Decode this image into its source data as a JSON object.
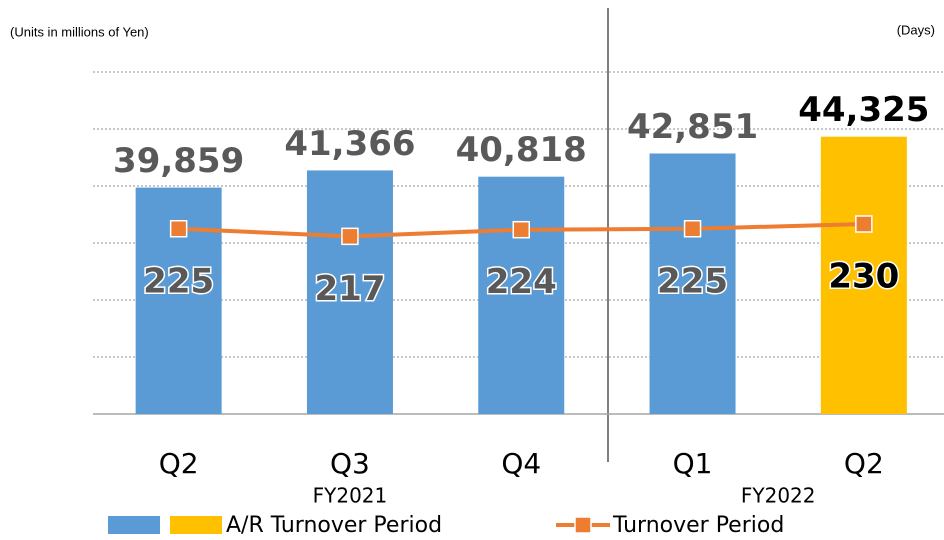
{
  "chart_data": {
    "type": "bar",
    "units_left": "(Units in millions of Yen)",
    "units_right": "(Days)",
    "categories": [
      "Q2",
      "Q3",
      "Q4",
      "Q1",
      "Q2"
    ],
    "groups": [
      {
        "label": "FY2021",
        "from": 0,
        "to": 2
      },
      {
        "label": "FY2022",
        "from": 3,
        "to": 4
      }
    ],
    "series": [
      {
        "name": "A/R Turnover Period",
        "type": "bar",
        "colors": [
          "#5b9bd5",
          "#5b9bd5",
          "#5b9bd5",
          "#5b9bd5",
          "#ffc000"
        ],
        "values": [
          39859,
          41366,
          40818,
          42851,
          44325
        ],
        "value_labels": [
          "39,859",
          "41,366",
          "40,818",
          "42,851",
          "44,325"
        ]
      },
      {
        "name": "Turnover Period",
        "type": "line",
        "color": "#ed7d31",
        "axis": "y2",
        "values": [
          225,
          217,
          224,
          225,
          230
        ]
      }
    ],
    "ylim": [
      20000,
      50000
    ],
    "yticks": [
      20000,
      25000,
      30000,
      35000,
      40000,
      45000,
      50000
    ],
    "y2lim": [
      30,
      390
    ],
    "grid": true
  }
}
